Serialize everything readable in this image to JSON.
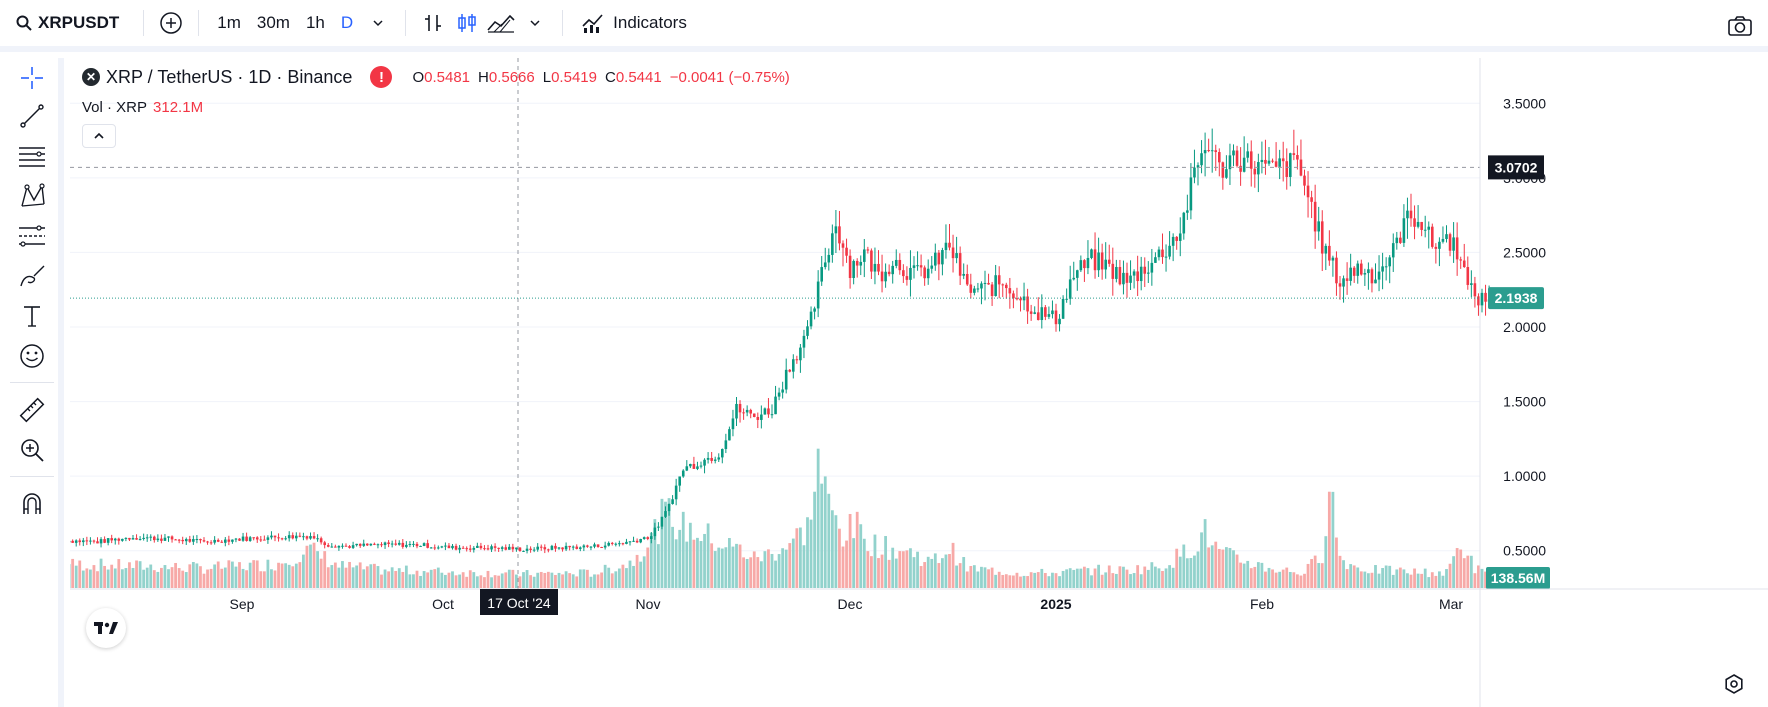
{
  "toolbar": {
    "symbol": "XRPUSDT",
    "intervals": [
      "1m",
      "30m",
      "1h",
      "D"
    ],
    "active_interval": "D",
    "indicators_label": "Indicators",
    "icons": [
      "search-icon",
      "add-symbol-icon",
      "chevron-down-icon",
      "bar-chart-icon",
      "candles-icon",
      "area-chart-icon",
      "chevron-down-icon",
      "indicators-icon",
      "camera-icon"
    ]
  },
  "left_tools": [
    "crosshair-icon",
    "trend-line-icon",
    "fib-icon",
    "pattern-icon",
    "forecast-icon",
    "brush-icon",
    "text-icon",
    "emoji-icon",
    "ruler-icon",
    "zoom-in-icon",
    "magnet-icon"
  ],
  "legend": {
    "title": "XRP / TetherUS · 1D · Binance",
    "o_label": "O",
    "o": "0.5481",
    "h_label": "H",
    "h": "0.5666",
    "l_label": "L",
    "l": "0.5419",
    "c_label": "C",
    "c": "0.5441",
    "change": "−0.0041 (−0.75%)",
    "vol_label": "Vol · XRP",
    "vol_value": "312.1M"
  },
  "colors": {
    "up": "#089981",
    "down": "#f23645",
    "up_vol": "#92d2cc",
    "down_vol": "#f7a9a7",
    "price_line": "#2b9d8f"
  },
  "chart_data": {
    "type": "candlestick",
    "symbol": "XRP / TetherUS",
    "interval": "1D",
    "exchange": "Binance",
    "ylim": [
      0.25,
      3.75
    ],
    "y_ticks": [
      "3.5000",
      "3.0000",
      "2.5000",
      "2.0000",
      "1.5000",
      "1.0000",
      "0.5000"
    ],
    "x_ticks": [
      "Sep",
      "Oct",
      "Nov",
      "Dec",
      "2025",
      "Feb",
      "Mar"
    ],
    "crosshair": {
      "date_label": "17 Oct '24",
      "price_label": "3.0702",
      "price": 3.0702
    },
    "last_price_label": "2.1938",
    "last_price": 2.1938,
    "last_volume_label": "138.56M",
    "close_anchors": [
      [
        0,
        0.57
      ],
      [
        10,
        0.56
      ],
      [
        20,
        0.59
      ],
      [
        30,
        0.58
      ],
      [
        40,
        0.56
      ],
      [
        50,
        0.58
      ],
      [
        60,
        0.59
      ],
      [
        70,
        0.6
      ],
      [
        75,
        0.54
      ],
      [
        80,
        0.53
      ],
      [
        90,
        0.54
      ],
      [
        100,
        0.54
      ],
      [
        110,
        0.52
      ],
      [
        120,
        0.52
      ],
      [
        130,
        0.51
      ],
      [
        140,
        0.52
      ],
      [
        150,
        0.53
      ],
      [
        160,
        0.56
      ],
      [
        166,
        0.6
      ],
      [
        170,
        0.75
      ],
      [
        175,
        1.05
      ],
      [
        180,
        1.1
      ],
      [
        185,
        1.15
      ],
      [
        190,
        1.45
      ],
      [
        195,
        1.4
      ],
      [
        200,
        1.45
      ],
      [
        205,
        1.75
      ],
      [
        210,
        1.95
      ],
      [
        215,
        2.45
      ],
      [
        218,
        2.7
      ],
      [
        222,
        2.4
      ],
      [
        226,
        2.5
      ],
      [
        230,
        2.35
      ],
      [
        234,
        2.45
      ],
      [
        240,
        2.35
      ],
      [
        245,
        2.4
      ],
      [
        250,
        2.55
      ],
      [
        255,
        2.25
      ],
      [
        260,
        2.25
      ],
      [
        265,
        2.3
      ],
      [
        270,
        2.2
      ],
      [
        275,
        2.1
      ],
      [
        280,
        2.05
      ],
      [
        285,
        2.35
      ],
      [
        290,
        2.45
      ],
      [
        295,
        2.4
      ],
      [
        300,
        2.3
      ],
      [
        305,
        2.4
      ],
      [
        310,
        2.5
      ],
      [
        315,
        2.65
      ],
      [
        320,
        3.1
      ],
      [
        323,
        3.25
      ],
      [
        326,
        3.05
      ],
      [
        330,
        3.15
      ],
      [
        335,
        3.1
      ],
      [
        340,
        3.05
      ],
      [
        345,
        3.08
      ],
      [
        348,
        3.1
      ],
      [
        352,
        2.8
      ],
      [
        355,
        2.55
      ],
      [
        360,
        2.3
      ],
      [
        365,
        2.4
      ],
      [
        370,
        2.35
      ],
      [
        375,
        2.5
      ],
      [
        378,
        2.7
      ],
      [
        382,
        2.75
      ],
      [
        386,
        2.55
      ],
      [
        390,
        2.6
      ],
      [
        394,
        2.5
      ],
      [
        396,
        2.25
      ],
      [
        400,
        2.18
      ],
      [
        402,
        2.19
      ]
    ],
    "volume_anchors": [
      [
        0,
        24
      ],
      [
        20,
        22
      ],
      [
        40,
        20
      ],
      [
        60,
        24
      ],
      [
        70,
        38
      ],
      [
        78,
        22
      ],
      [
        90,
        18
      ],
      [
        110,
        16
      ],
      [
        130,
        14
      ],
      [
        150,
        15
      ],
      [
        160,
        25
      ],
      [
        166,
        50
      ],
      [
        170,
        75
      ],
      [
        175,
        60
      ],
      [
        180,
        55
      ],
      [
        185,
        45
      ],
      [
        190,
        40
      ],
      [
        195,
        30
      ],
      [
        200,
        35
      ],
      [
        205,
        45
      ],
      [
        210,
        60
      ],
      [
        213,
        125
      ],
      [
        216,
        80
      ],
      [
        220,
        55
      ],
      [
        224,
        60
      ],
      [
        228,
        45
      ],
      [
        232,
        40
      ],
      [
        240,
        35
      ],
      [
        245,
        25
      ],
      [
        250,
        40
      ],
      [
        255,
        20
      ],
      [
        260,
        18
      ],
      [
        270,
        15
      ],
      [
        280,
        15
      ],
      [
        290,
        18
      ],
      [
        300,
        18
      ],
      [
        310,
        22
      ],
      [
        318,
        40
      ],
      [
        322,
        55
      ],
      [
        326,
        35
      ],
      [
        330,
        30
      ],
      [
        340,
        20
      ],
      [
        350,
        15
      ],
      [
        355,
        35
      ],
      [
        357,
        110
      ],
      [
        360,
        30
      ],
      [
        365,
        20
      ],
      [
        370,
        18
      ],
      [
        380,
        16
      ],
      [
        390,
        15
      ],
      [
        394,
        45
      ],
      [
        398,
        20
      ],
      [
        402,
        12
      ]
    ]
  }
}
